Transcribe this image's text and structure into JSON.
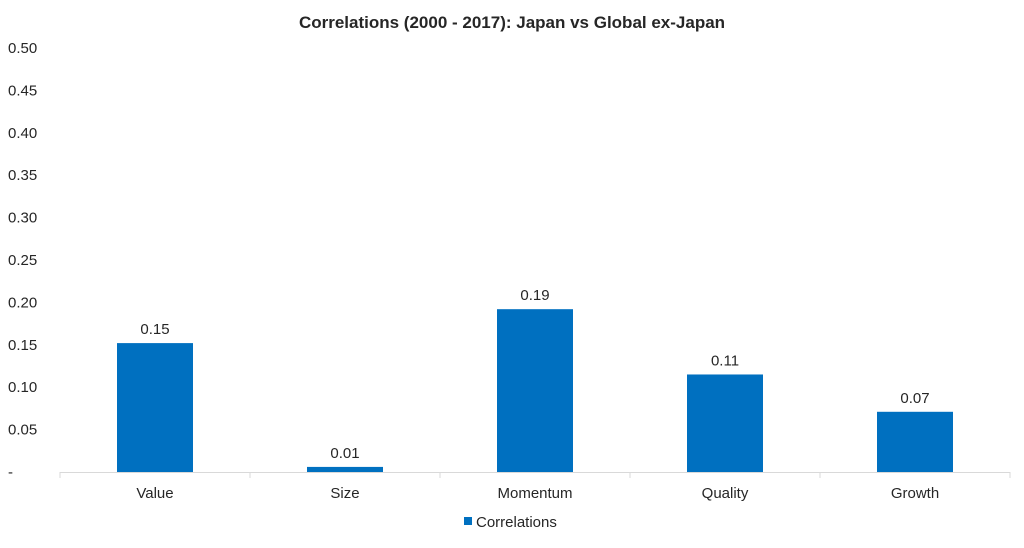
{
  "chart_data": {
    "type": "bar",
    "title": "Correlations (2000 - 2017): Japan vs Global ex-Japan",
    "categories": [
      "Value",
      "Size",
      "Momentum",
      "Quality",
      "Growth"
    ],
    "series": [
      {
        "name": "Correlations",
        "values": [
          0.152,
          0.006,
          0.192,
          0.115,
          0.071
        ],
        "labels": [
          "0.15",
          "0.01",
          "0.19",
          "0.11",
          "0.07"
        ],
        "color": "#0070C0"
      }
    ],
    "yticks": [
      "-",
      "0.05",
      "0.10",
      "0.15",
      "0.20",
      "0.25",
      "0.30",
      "0.35",
      "0.40",
      "0.45",
      "0.50"
    ],
    "ylim": [
      0,
      0.5
    ],
    "xlabel": "",
    "ylabel": "",
    "grid": false,
    "legend": "bottom"
  }
}
